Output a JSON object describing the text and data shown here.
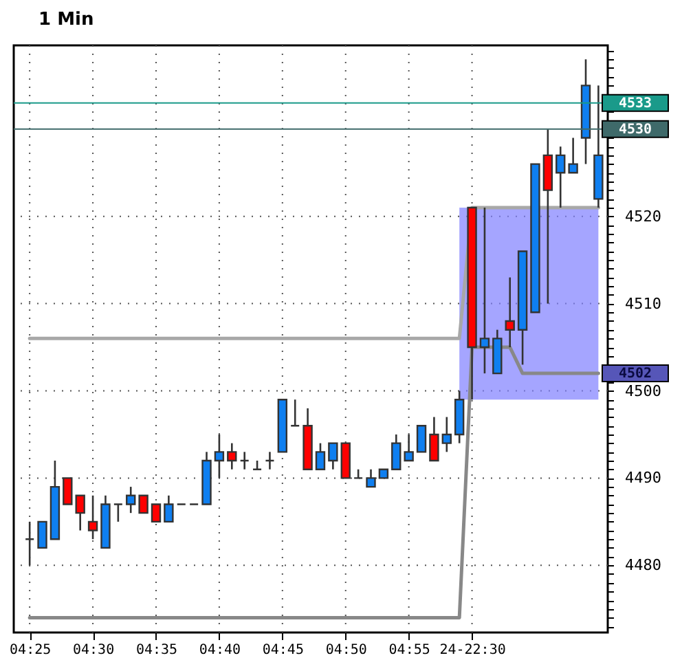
{
  "chart_data": {
    "type": "candlestick",
    "title": "1 Min",
    "categories": [
      "04:25",
      null,
      null,
      null,
      null,
      "04:30",
      null,
      null,
      null,
      null,
      "04:35",
      null,
      null,
      null,
      null,
      "04:40",
      null,
      null,
      null,
      null,
      "04:45",
      null,
      null,
      null,
      null,
      "04:50",
      null,
      null,
      null,
      null,
      "04:55",
      null,
      null,
      null,
      null,
      "24-22:30",
      null,
      null,
      null,
      null,
      null,
      null,
      null,
      null,
      null,
      null
    ],
    "ohlc": [
      [
        4483,
        4485,
        4480,
        4483
      ],
      [
        4482,
        4485,
        4482,
        4485
      ],
      [
        4483,
        4492,
        4483,
        4489
      ],
      [
        4490,
        4490,
        4487,
        4487
      ],
      [
        4488,
        4488,
        4484,
        4486
      ],
      [
        4485,
        4488,
        4483,
        4484
      ],
      [
        4482,
        4488,
        4482,
        4487
      ],
      [
        4487,
        4487,
        4485,
        4487
      ],
      [
        4487,
        4489,
        4486,
        4488
      ],
      [
        4488,
        4488,
        4486,
        4486
      ],
      [
        4487,
        4487,
        4485,
        4485
      ],
      [
        4485,
        4488,
        4485,
        4487
      ],
      [
        4487,
        4487,
        4487,
        4487
      ],
      [
        4487,
        4487,
        4487,
        4487
      ],
      [
        4487,
        4493,
        4487,
        4492
      ],
      [
        4492,
        4495,
        4490,
        4493
      ],
      [
        4493,
        4494,
        4491,
        4492
      ],
      [
        4492,
        4493,
        4491,
        4492
      ],
      [
        4491,
        4492,
        4491,
        4491
      ],
      [
        4492,
        4493,
        4491,
        4492
      ],
      [
        4493,
        4499,
        4493,
        4499
      ],
      [
        4496,
        4499,
        4496,
        4496
      ],
      [
        4496,
        4498,
        4491,
        4491
      ],
      [
        4491,
        4494,
        4491,
        4493
      ],
      [
        4492,
        4494,
        4491,
        4494
      ],
      [
        4494,
        4494,
        4490,
        4490
      ],
      [
        4490,
        4491,
        4490,
        4490
      ],
      [
        4489,
        4491,
        4489,
        4490
      ],
      [
        4490,
        4491,
        4490,
        4491
      ],
      [
        4491,
        4495,
        4491,
        4494
      ],
      [
        4492,
        4495,
        4492,
        4493
      ],
      [
        4493,
        4496,
        4493,
        4496
      ],
      [
        4495,
        4497,
        4492,
        4492
      ],
      [
        4494,
        4497,
        4493,
        4495
      ],
      [
        4495,
        4500,
        4494,
        4499
      ],
      [
        4521,
        4521,
        4499,
        4505
      ],
      [
        4505,
        4521,
        4502,
        4506
      ],
      [
        4502,
        4507,
        4502,
        4506
      ],
      [
        4508,
        4513,
        4505,
        4507
      ],
      [
        4507,
        4516,
        4503,
        4516
      ],
      [
        4509,
        4526,
        4509,
        4526
      ],
      [
        4527,
        4530,
        4510,
        4523
      ],
      [
        4525,
        4528,
        4521,
        4527
      ],
      [
        4525,
        4529,
        4525,
        4526
      ],
      [
        4529,
        4538,
        4526,
        4535
      ],
      [
        4522,
        4535,
        4521,
        4527
      ]
    ],
    "colors": [
      "#333333",
      "#0f7ff0",
      "#0f7ff0",
      "#ff0000",
      "#ff0000",
      "#ff0000",
      "#0f7ff0",
      "#333333",
      "#0f7ff0",
      "#ff0000",
      "#ff0000",
      "#0f7ff0",
      "#333333",
      "#333333",
      "#0f7ff0",
      "#0f7ff0",
      "#ff0000",
      "#333333",
      "#333333",
      "#333333",
      "#0f7ff0",
      "#333333",
      "#ff0000",
      "#0f7ff0",
      "#0f7ff0",
      "#ff0000",
      "#333333",
      "#0f7ff0",
      "#0f7ff0",
      "#0f7ff0",
      "#0f7ff0",
      "#0f7ff0",
      "#ff0000",
      "#0f7ff0",
      "#0f7ff0",
      "#ff0000",
      "#0f7ff0",
      "#0f7ff0",
      "#ff0000",
      "#0f7ff0",
      "#0f7ff0",
      "#ff0000",
      "#0f7ff0",
      "#0f7ff0",
      "#0f7ff0",
      "#0f7ff0"
    ],
    "series": [
      {
        "type": "line",
        "color": "#a8a8a8",
        "values": [
          4506,
          4506,
          4506,
          4506,
          4506,
          4506,
          4506,
          4506,
          4506,
          4506,
          4506,
          4506,
          4506,
          4506,
          4506,
          4506,
          4506,
          4506,
          4506,
          4506,
          4506,
          4506,
          4506,
          4506,
          4506,
          4506,
          4506,
          4506,
          4506,
          4506,
          4506,
          4506,
          4506,
          4506,
          4506,
          4521,
          4521,
          4521,
          4521,
          4521,
          4521,
          4521,
          4521,
          4521,
          4521,
          4521
        ]
      },
      {
        "type": "line",
        "color": "#888888",
        "values": [
          4474,
          4474,
          4474,
          4474,
          4474,
          4474,
          4474,
          4474,
          4474,
          4474,
          4474,
          4474,
          4474,
          4474,
          4474,
          4474,
          4474,
          4474,
          4474,
          4474,
          4474,
          4474,
          4474,
          4474,
          4474,
          4474,
          4474,
          4474,
          4474,
          4474,
          4474,
          4474,
          4474,
          4474,
          4474,
          4505,
          4505,
          4505,
          4505,
          4502,
          4502,
          4502,
          4502,
          4502,
          4502,
          4502
        ],
        "lower": [
          null,
          null,
          null,
          null,
          null,
          null,
          null,
          null,
          null,
          null,
          null,
          null,
          null,
          null,
          null,
          null,
          null,
          null,
          null,
          null,
          null,
          null,
          null,
          null,
          null,
          null,
          null,
          null,
          null,
          null,
          null,
          null,
          null,
          null,
          4499,
          4499,
          4499,
          4499,
          4499,
          4499,
          4499,
          4499,
          4499,
          4499,
          4499,
          4499
        ],
        "upper": [
          null,
          null,
          null,
          null,
          null,
          null,
          null,
          null,
          null,
          null,
          null,
          null,
          null,
          null,
          null,
          null,
          null,
          null,
          null,
          null,
          null,
          null,
          null,
          null,
          null,
          null,
          null,
          null,
          null,
          null,
          null,
          null,
          null,
          null,
          4521,
          4521,
          4521,
          4521,
          4521,
          4521,
          4521,
          4521,
          4521,
          4521,
          4521,
          4521
        ],
        "value_labels": [
          null,
          null,
          null,
          null,
          null,
          null,
          null,
          null,
          null,
          null,
          null,
          null,
          null,
          null,
          null,
          null,
          null,
          null,
          null,
          null,
          null,
          null,
          null,
          null,
          null,
          null,
          null,
          null,
          null,
          null,
          null,
          null,
          null,
          null,
          null,
          null,
          null,
          null,
          null,
          null,
          null,
          null,
          null,
          null,
          null,
          "4502"
        ]
      }
    ],
    "ylim": [
      4472.3,
      4539.6
    ],
    "yticks": [
      {
        "value": 4473,
        "label": null
      },
      {
        "value": 4474,
        "label": null
      },
      {
        "value": 4475,
        "label": null
      },
      {
        "value": 4476,
        "label": null
      },
      {
        "value": 4477,
        "label": null
      },
      {
        "value": 4478,
        "label": null
      },
      {
        "value": 4479,
        "label": null
      },
      4480,
      {
        "value": 4481,
        "label": null
      },
      {
        "value": 4482,
        "label": null
      },
      {
        "value": 4483,
        "label": null
      },
      {
        "value": 4484,
        "label": null
      },
      {
        "value": 4485,
        "label": null
      },
      {
        "value": 4486,
        "label": null
      },
      {
        "value": 4487,
        "label": null
      },
      {
        "value": 4488,
        "label": null
      },
      {
        "value": 4489,
        "label": null
      },
      4490,
      {
        "value": 4491,
        "label": null
      },
      {
        "value": 4492,
        "label": null
      },
      {
        "value": 4493,
        "label": null
      },
      {
        "value": 4494,
        "label": null
      },
      {
        "value": 4495,
        "label": null
      },
      {
        "value": 4496,
        "label": null
      },
      {
        "value": 4497,
        "label": null
      },
      {
        "value": 4498,
        "label": null
      },
      {
        "value": 4499,
        "label": null
      },
      4500,
      {
        "value": 4501,
        "label": null
      },
      {
        "value": 4502,
        "label": null
      },
      {
        "value": 4503,
        "label": null
      },
      {
        "value": 4504,
        "label": null
      },
      {
        "value": 4505,
        "label": null
      },
      {
        "value": 4506,
        "label": null
      },
      {
        "value": 4507,
        "label": null
      },
      {
        "value": 4508,
        "label": null
      },
      {
        "value": 4509,
        "label": null
      },
      4510,
      {
        "value": 4511,
        "label": null
      },
      {
        "value": 4512,
        "label": null
      },
      {
        "value": 4513,
        "label": null
      },
      {
        "value": 4514,
        "label": null
      },
      {
        "value": 4515,
        "label": null
      },
      {
        "value": 4516,
        "label": null
      },
      {
        "value": 4517,
        "label": null
      },
      {
        "value": 4518,
        "label": null
      },
      {
        "value": 4519,
        "label": null
      },
      4520,
      {
        "value": 4521,
        "label": null
      },
      {
        "value": 4522,
        "label": null
      },
      {
        "value": 4523,
        "label": null
      },
      {
        "value": 4524,
        "label": null
      },
      {
        "value": 4525,
        "label": null
      },
      {
        "value": 4526,
        "label": null
      },
      {
        "value": 4527,
        "label": null
      },
      {
        "value": 4528,
        "label": null
      },
      {
        "value": 4529,
        "label": null
      },
      {
        "value": 4530,
        "label": null
      },
      {
        "value": 4531,
        "label": null
      },
      {
        "value": 4532,
        "label": null
      },
      {
        "value": 4533,
        "label": null
      },
      {
        "value": 4534,
        "label": null
      },
      {
        "value": 4535,
        "label": null
      },
      {
        "value": 4536,
        "label": null
      },
      {
        "value": 4537,
        "label": null
      },
      {
        "value": 4538,
        "label": null
      },
      {
        "value": 4539,
        "label": null
      }
    ],
    "grid": true,
    "ref_lines": [
      {
        "axis": "y",
        "value": 4533,
        "label": "4533",
        "color": "#1a9a8a"
      },
      {
        "axis": "y",
        "value": 4530,
        "label": "4530",
        "color": "#3f6a6a"
      }
    ]
  }
}
